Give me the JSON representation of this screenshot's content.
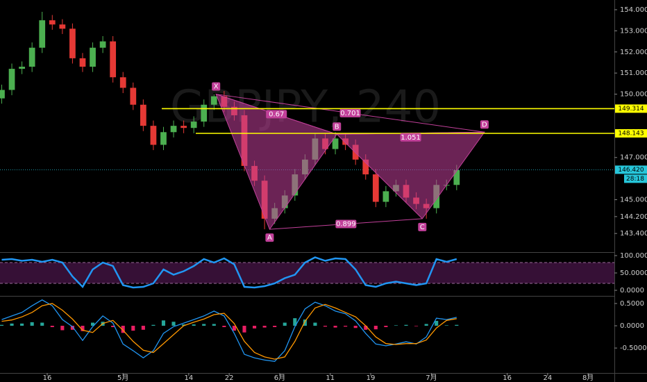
{
  "chart_data": [
    {
      "type": "candlestick",
      "watermark": "GBPJPY, 240",
      "xlim": [
        -9.34,
        112.2
      ],
      "ylim": [
        142.55,
        154.46
      ],
      "yticks": [
        {
          "value": 154,
          "label": "154.000"
        },
        {
          "value": 153,
          "label": "153.000"
        },
        {
          "value": 152,
          "label": "152.000"
        },
        {
          "value": 151,
          "label": "151.000"
        },
        {
          "value": 150,
          "label": "150.000"
        },
        {
          "value": 147,
          "label": "147.000"
        },
        {
          "value": 145,
          "label": "145.000"
        },
        {
          "value": 144.2,
          "label": "144.200"
        },
        {
          "value": 143.4,
          "label": "143.400"
        }
      ],
      "up_color": "#4caf50",
      "down_color": "#e53935",
      "x": [
        -9,
        -7,
        -5,
        -3,
        -1,
        1,
        3,
        5,
        7,
        9,
        11,
        13,
        15,
        17,
        19,
        21,
        23,
        25,
        27,
        29,
        31,
        33,
        35,
        37,
        39,
        41,
        43,
        45,
        47,
        49,
        51,
        53,
        55,
        57,
        59,
        61,
        63,
        65,
        67,
        69,
        71,
        73,
        75,
        77,
        79,
        81
      ],
      "ohlc": [
        [
          149.8,
          150.45,
          149.55,
          150.2
        ],
        [
          150.2,
          151.45,
          149.95,
          151.2
        ],
        [
          151.2,
          151.55,
          150.95,
          151.3
        ],
        [
          151.3,
          152.45,
          151.05,
          152.2
        ],
        [
          152.2,
          153.9,
          151.95,
          153.5
        ],
        [
          153.5,
          153.75,
          153.05,
          153.3
        ],
        [
          153.3,
          153.55,
          152.85,
          153.1
        ],
        [
          153.1,
          153.35,
          151.45,
          151.7
        ],
        [
          151.7,
          151.95,
          151.05,
          151.3
        ],
        [
          151.3,
          152.45,
          151.05,
          152.2
        ],
        [
          152.2,
          152.75,
          151.95,
          152.5
        ],
        [
          152.5,
          152.75,
          150.55,
          150.8
        ],
        [
          150.8,
          151.05,
          150.05,
          150.3
        ],
        [
          150.3,
          150.55,
          149.25,
          149.5
        ],
        [
          149.5,
          149.75,
          148.25,
          148.5
        ],
        [
          148.5,
          148.75,
          147.35,
          147.6
        ],
        [
          147.6,
          148.45,
          147.35,
          148.2
        ],
        [
          148.2,
          148.75,
          147.95,
          148.5
        ],
        [
          148.5,
          148.75,
          148.15,
          148.4
        ],
        [
          148.4,
          148.95,
          148.15,
          148.7
        ],
        [
          148.7,
          149.75,
          148.45,
          149.5
        ],
        [
          149.5,
          150.0,
          149.25,
          149.9
        ],
        [
          149.9,
          150.15,
          149.15,
          149.4
        ],
        [
          149.4,
          149.65,
          148.75,
          149.0
        ],
        [
          149.0,
          149.25,
          146.35,
          146.6
        ],
        [
          146.6,
          146.85,
          145.65,
          145.9
        ],
        [
          145.9,
          146.15,
          143.6,
          144.1
        ],
        [
          144.1,
          144.85,
          143.85,
          144.6
        ],
        [
          144.6,
          145.45,
          144.35,
          145.2
        ],
        [
          145.2,
          146.45,
          144.95,
          146.2
        ],
        [
          146.2,
          147.15,
          145.95,
          146.9
        ],
        [
          146.9,
          148.15,
          146.65,
          147.9
        ],
        [
          147.9,
          148.15,
          147.15,
          147.4
        ],
        [
          147.4,
          148.2,
          147.15,
          147.9
        ],
        [
          147.9,
          148.15,
          147.35,
          147.6
        ],
        [
          147.6,
          147.85,
          146.65,
          146.9
        ],
        [
          146.9,
          147.15,
          145.95,
          146.2
        ],
        [
          146.2,
          146.45,
          144.65,
          144.9
        ],
        [
          144.9,
          145.65,
          144.65,
          145.4
        ],
        [
          145.4,
          145.95,
          145.15,
          145.7
        ],
        [
          145.7,
          145.95,
          144.85,
          145.1
        ],
        [
          145.1,
          145.35,
          144.55,
          144.8
        ],
        [
          144.8,
          145.05,
          144.1,
          144.6
        ],
        [
          144.6,
          145.95,
          144.35,
          145.7
        ],
        [
          145.7,
          145.95,
          145.45,
          145.7
        ],
        [
          145.7,
          146.65,
          145.45,
          146.4
        ]
      ],
      "pattern": {
        "color": "#c2409a",
        "points": [
          {
            "label": "X",
            "x": 33.4,
            "y": 150.0
          },
          {
            "label": "A",
            "x": 44,
            "y": 143.6
          },
          {
            "label": "B",
            "x": 57.3,
            "y": 148.1
          },
          {
            "label": "C",
            "x": 74.2,
            "y": 144.1
          },
          {
            "label": "D",
            "x": 86.5,
            "y": 148.2
          }
        ],
        "ratios": [
          0.67,
          0.701,
          1.051,
          0.899
        ]
      },
      "levels": [
        {
          "value": 149.314,
          "label": "149.314",
          "color": "#ffff00"
        },
        {
          "value": 148.143,
          "label": "148.143",
          "color": "#ffff00"
        }
      ],
      "last_price": {
        "value": 146.42,
        "label": "146.420",
        "countdown": "28:18",
        "color": "#26c6da"
      }
    },
    {
      "type": "line",
      "ylim": [
        -14,
        108
      ],
      "color": "#2196f3",
      "band": [
        20,
        80
      ],
      "yticks": [
        {
          "value": 100,
          "label": "100.0000"
        },
        {
          "value": 50,
          "label": "50.0000"
        },
        {
          "value": 0,
          "label": "0.0000"
        }
      ],
      "values": [
        88,
        90,
        85,
        88,
        82,
        88,
        80,
        40,
        10,
        60,
        80,
        70,
        15,
        8,
        10,
        20,
        60,
        45,
        55,
        70,
        90,
        80,
        92,
        75,
        10,
        8,
        12,
        20,
        35,
        45,
        80,
        95,
        85,
        92,
        90,
        60,
        15,
        10,
        20,
        25,
        20,
        15,
        20,
        90,
        82,
        90
      ]
    },
    {
      "type": "macd",
      "ylim": [
        -1.06,
        0.64
      ],
      "xlim": [
        -9.34,
        112.2
      ],
      "yticks": [
        {
          "value": 0.5,
          "label": "0.5000"
        },
        {
          "value": 0,
          "label": "0.0000"
        },
        {
          "value": -0.5,
          "label": "-0.5000"
        }
      ],
      "xticks": [
        {
          "value": 0,
          "label": "16"
        },
        {
          "value": 15,
          "label": "5月"
        },
        {
          "value": 28,
          "label": "14"
        },
        {
          "value": 36,
          "label": "22"
        },
        {
          "value": 46,
          "label": "6月"
        },
        {
          "value": 56,
          "label": "11"
        },
        {
          "value": 64,
          "label": "19"
        },
        {
          "value": 76,
          "label": "7月"
        },
        {
          "value": 91,
          "label": "16"
        },
        {
          "value": 99,
          "label": "24"
        },
        {
          "value": 107,
          "label": "8月"
        }
      ],
      "series": [
        {
          "color": "#2196f3",
          "values": [
            0.14,
            0.22,
            0.3,
            0.45,
            0.58,
            0.45,
            0.14,
            -0.02,
            -0.33,
            -0.02,
            0.22,
            0.06,
            -0.41,
            -0.56,
            -0.72,
            -0.56,
            -0.17,
            -0.02,
            0.06,
            0.14,
            0.22,
            0.33,
            0.22,
            -0.17,
            -0.64,
            -0.72,
            -0.77,
            -0.8,
            -0.56,
            -0.02,
            0.38,
            0.53,
            0.45,
            0.33,
            0.27,
            0.11,
            -0.17,
            -0.41,
            -0.45,
            -0.41,
            -0.36,
            -0.41,
            -0.25,
            0.17,
            0.14,
            0.19
          ]
        },
        {
          "color": "#ff9800",
          "values": [
            0.1,
            0.13,
            0.2,
            0.3,
            0.45,
            0.5,
            0.35,
            0.15,
            -0.1,
            -0.15,
            0.05,
            0.12,
            -0.1,
            -0.35,
            -0.55,
            -0.6,
            -0.4,
            -0.2,
            0,
            0.08,
            0.15,
            0.25,
            0.28,
            0.05,
            -0.35,
            -0.6,
            -0.7,
            -0.75,
            -0.7,
            -0.35,
            0.1,
            0.4,
            0.48,
            0.4,
            0.3,
            0.2,
            0,
            -0.25,
            -0.4,
            -0.42,
            -0.4,
            -0.4,
            -0.32,
            -0.05,
            0.12,
            0.16
          ]
        }
      ],
      "histogram": {
        "up_color": "#26a69a",
        "down_color": "#e91e63",
        "values": [
          0.02,
          0.05,
          0.05,
          0.08,
          0.07,
          -0.03,
          -0.1,
          -0.09,
          -0.12,
          0.07,
          0.09,
          -0.03,
          -0.16,
          -0.11,
          -0.09,
          0.02,
          0.12,
          0.09,
          0.03,
          0.03,
          0.04,
          0.04,
          -0.03,
          -0.11,
          -0.15,
          -0.06,
          -0.04,
          -0.03,
          0.07,
          0.17,
          0.14,
          0.07,
          -0.02,
          -0.04,
          -0.02,
          -0.05,
          -0.09,
          -0.08,
          -0.03,
          0.01,
          0.02,
          -0.01,
          0.04,
          0.11,
          0.01,
          0.02
        ]
      }
    }
  ]
}
